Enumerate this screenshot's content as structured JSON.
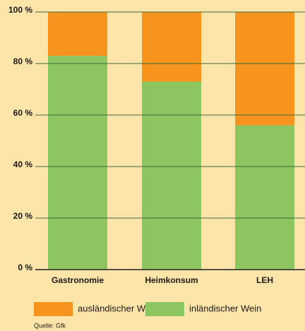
{
  "chart_data": {
    "type": "stacked_bar",
    "categories": [
      "Gastronomie",
      "Heimkonsum",
      "LEH"
    ],
    "series": [
      {
        "name": "ausländischer Wein",
        "color": "#f7941d",
        "values": [
          17,
          27,
          44
        ]
      },
      {
        "name": "inländischer Wein",
        "color": "#8dc661",
        "values": [
          83,
          73,
          56
        ]
      }
    ],
    "ylim": [
      0,
      100
    ],
    "yticks": [
      {
        "value": 0,
        "label": "0 %"
      },
      {
        "value": 20,
        "label": "20 %"
      },
      {
        "value": 40,
        "label": "40 %"
      },
      {
        "value": 60,
        "label": "60 %"
      },
      {
        "value": 80,
        "label": "80 %"
      },
      {
        "value": 100,
        "label": "100 %"
      }
    ],
    "grid": true,
    "source": "Quelle: Gfk"
  }
}
